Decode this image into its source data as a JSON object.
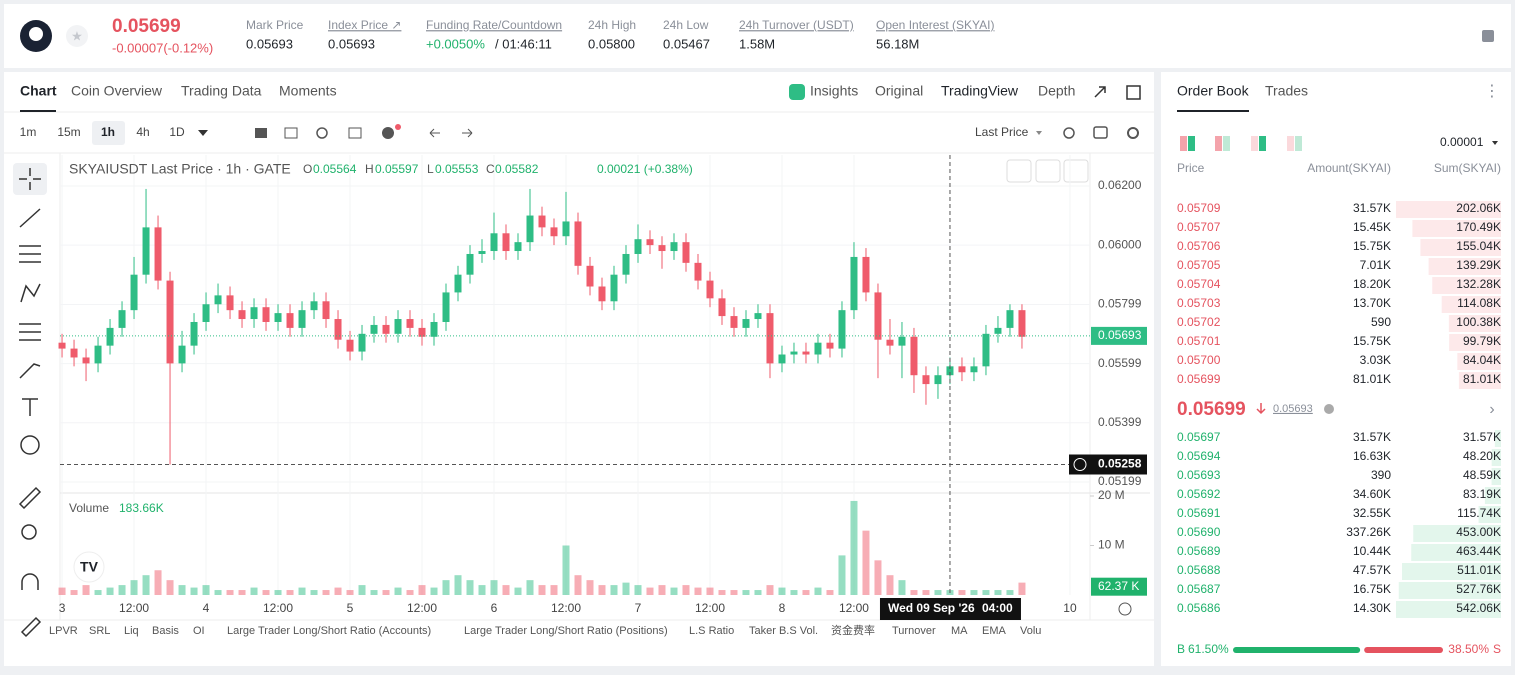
{
  "header": {
    "price": "0.05699",
    "change": "-0.00007(-0.12%)",
    "stats": [
      {
        "label": "Mark Price",
        "value": "0.05693"
      },
      {
        "label": "Index Price ↗",
        "value": "0.05693"
      },
      {
        "label": "Funding Rate/Countdown",
        "value": "+0.0050%",
        "extra": "/ 01:46:11"
      },
      {
        "label": "24h High",
        "value": "0.05800"
      },
      {
        "label": "24h Low",
        "value": "0.05467"
      },
      {
        "label": "24h Turnover (USDT)",
        "value": "1.58M"
      },
      {
        "label": "Open Interest (SKYAI)",
        "value": "56.18M"
      }
    ]
  },
  "tabs": [
    "Chart",
    "Coin Overview",
    "Trading Data",
    "Moments"
  ],
  "view_tabs": [
    "Insights",
    "Original",
    "TradingView",
    "Depth"
  ],
  "intervals": [
    "1m",
    "15m",
    "1h",
    "4h",
    "1D"
  ],
  "price_source": "Last Price",
  "chart_data": {
    "type": "candlestick",
    "legend": {
      "symbol": "SKYAIUSDT Last Price · 1h · GATE",
      "o": "O",
      "ov": "0.05564",
      "h": "H",
      "hv": "0.05597",
      "l": "L",
      "lv": "0.05553",
      "c": "C",
      "cv": "0.05582",
      "chg": "0.00021 (+0.38%)"
    },
    "up_color": "#2ebd85",
    "down_color": "#ef5b6b",
    "candles": [
      [
        0.0567,
        0.057,
        0.0562,
        0.0565
      ],
      [
        0.0565,
        0.0568,
        0.0559,
        0.0562
      ],
      [
        0.0562,
        0.0565,
        0.0554,
        0.056
      ],
      [
        0.056,
        0.0569,
        0.0557,
        0.0566
      ],
      [
        0.0566,
        0.0575,
        0.0563,
        0.0572
      ],
      [
        0.0572,
        0.0581,
        0.0569,
        0.0578
      ],
      [
        0.0578,
        0.0596,
        0.0575,
        0.059
      ],
      [
        0.059,
        0.0619,
        0.0587,
        0.0606
      ],
      [
        0.0606,
        0.061,
        0.0585,
        0.0588
      ],
      [
        0.0588,
        0.0591,
        0.05258,
        0.056
      ],
      [
        0.056,
        0.0571,
        0.0557,
        0.0566
      ],
      [
        0.0566,
        0.0577,
        0.0563,
        0.0574
      ],
      [
        0.0574,
        0.0584,
        0.0571,
        0.058
      ],
      [
        0.058,
        0.0587,
        0.0577,
        0.0583
      ],
      [
        0.0583,
        0.0586,
        0.0575,
        0.0578
      ],
      [
        0.0578,
        0.0581,
        0.0572,
        0.0575
      ],
      [
        0.0575,
        0.0582,
        0.0572,
        0.0579
      ],
      [
        0.0579,
        0.0582,
        0.0571,
        0.0574
      ],
      [
        0.0574,
        0.058,
        0.0571,
        0.0577
      ],
      [
        0.0577,
        0.058,
        0.0569,
        0.0572
      ],
      [
        0.0572,
        0.0581,
        0.0569,
        0.0578
      ],
      [
        0.0578,
        0.0584,
        0.0575,
        0.0581
      ],
      [
        0.0581,
        0.0584,
        0.0572,
        0.0575
      ],
      [
        0.0575,
        0.0578,
        0.0565,
        0.0568
      ],
      [
        0.0568,
        0.0571,
        0.0561,
        0.0564
      ],
      [
        0.0564,
        0.0573,
        0.0561,
        0.057
      ],
      [
        0.057,
        0.0576,
        0.0567,
        0.0573
      ],
      [
        0.0573,
        0.0576,
        0.0567,
        0.057
      ],
      [
        0.057,
        0.0578,
        0.0567,
        0.0575
      ],
      [
        0.0575,
        0.0578,
        0.0569,
        0.0572
      ],
      [
        0.0572,
        0.0575,
        0.0566,
        0.0569
      ],
      [
        0.0569,
        0.0577,
        0.0566,
        0.0574
      ],
      [
        0.0574,
        0.0587,
        0.0571,
        0.0584
      ],
      [
        0.0584,
        0.0593,
        0.0581,
        0.059
      ],
      [
        0.059,
        0.06,
        0.0587,
        0.0597
      ],
      [
        0.0597,
        0.0602,
        0.0594,
        0.0598
      ],
      [
        0.0598,
        0.0611,
        0.0595,
        0.0604
      ],
      [
        0.0604,
        0.0607,
        0.0595,
        0.0598
      ],
      [
        0.0598,
        0.0604,
        0.0595,
        0.0601
      ],
      [
        0.0601,
        0.0619,
        0.0598,
        0.061
      ],
      [
        0.061,
        0.0613,
        0.0603,
        0.0606
      ],
      [
        0.0606,
        0.0609,
        0.06,
        0.0603
      ],
      [
        0.0603,
        0.0618,
        0.06,
        0.0608
      ],
      [
        0.0608,
        0.0611,
        0.059,
        0.0593
      ],
      [
        0.0593,
        0.0596,
        0.0583,
        0.0586
      ],
      [
        0.0586,
        0.0589,
        0.0578,
        0.0581
      ],
      [
        0.0581,
        0.0593,
        0.0578,
        0.059
      ],
      [
        0.059,
        0.06,
        0.0587,
        0.0597
      ],
      [
        0.0597,
        0.0607,
        0.0594,
        0.0602
      ],
      [
        0.0602,
        0.0605,
        0.0597,
        0.06
      ],
      [
        0.06,
        0.0603,
        0.0592,
        0.0598
      ],
      [
        0.0598,
        0.0604,
        0.0595,
        0.0601
      ],
      [
        0.0601,
        0.0604,
        0.0591,
        0.0594
      ],
      [
        0.0594,
        0.0597,
        0.0585,
        0.0588
      ],
      [
        0.0588,
        0.0591,
        0.0579,
        0.0582
      ],
      [
        0.0582,
        0.0585,
        0.0573,
        0.0576
      ],
      [
        0.0576,
        0.0579,
        0.0569,
        0.0572
      ],
      [
        0.0572,
        0.0578,
        0.0569,
        0.0575
      ],
      [
        0.0575,
        0.058,
        0.0572,
        0.0577
      ],
      [
        0.0577,
        0.058,
        0.0555,
        0.056
      ],
      [
        0.056,
        0.0566,
        0.0557,
        0.0563
      ],
      [
        0.0563,
        0.0567,
        0.056,
        0.0564
      ],
      [
        0.0564,
        0.0567,
        0.056,
        0.0563
      ],
      [
        0.0563,
        0.057,
        0.056,
        0.0567
      ],
      [
        0.0567,
        0.057,
        0.0562,
        0.0565
      ],
      [
        0.0565,
        0.0581,
        0.0562,
        0.0578
      ],
      [
        0.0578,
        0.0601,
        0.0575,
        0.0596
      ],
      [
        0.0596,
        0.0599,
        0.0581,
        0.0584
      ],
      [
        0.0584,
        0.0587,
        0.0555,
        0.0568
      ],
      [
        0.0568,
        0.0575,
        0.0563,
        0.0566
      ],
      [
        0.0566,
        0.0574,
        0.0555,
        0.0569
      ],
      [
        0.0569,
        0.0572,
        0.055,
        0.0556
      ],
      [
        0.0556,
        0.0559,
        0.0546,
        0.0553
      ],
      [
        0.0553,
        0.0559,
        0.0548,
        0.0556
      ],
      [
        0.0556,
        0.0562,
        0.0553,
        0.0559
      ],
      [
        0.0559,
        0.0562,
        0.0554,
        0.0557
      ],
      [
        0.0557,
        0.0562,
        0.0554,
        0.0559
      ],
      [
        0.0559,
        0.0573,
        0.0556,
        0.057
      ],
      [
        0.057,
        0.0576,
        0.0567,
        0.0572
      ],
      [
        0.0572,
        0.058,
        0.0569,
        0.0578
      ],
      [
        0.0578,
        0.058,
        0.0565,
        0.0569
      ]
    ],
    "ylim": [
      0.05165,
      0.06298
    ],
    "yticks": [
      {
        "value": 0.062,
        "label": "0.06200"
      },
      {
        "value": 0.06,
        "label": "0.06000"
      },
      {
        "value": 0.05799,
        "label": "0.05799"
      },
      {
        "value": 0.05599,
        "label": "0.05599"
      },
      {
        "value": 0.05399,
        "label": "0.05399"
      },
      {
        "value": 0.05199,
        "label": "0.05199"
      }
    ],
    "last_price": {
      "value": 0.05693,
      "label": "0.05693"
    },
    "low_marker": {
      "value": 0.05258,
      "label": "0.05258"
    },
    "xlim": [
      -0.17,
      85.67
    ],
    "xticks": [
      {
        "value": 0,
        "label": "3"
      },
      {
        "value": 6,
        "label": "12:00"
      },
      {
        "value": 12,
        "label": "4"
      },
      {
        "value": 18,
        "label": "12:00"
      },
      {
        "value": 24,
        "label": "5"
      },
      {
        "value": 30,
        "label": "12:00"
      },
      {
        "value": 36,
        "label": "6"
      },
      {
        "value": 42,
        "label": "12:00"
      },
      {
        "value": 48,
        "label": "7"
      },
      {
        "value": 54,
        "label": "12:00"
      },
      {
        "value": 60,
        "label": "8"
      },
      {
        "value": 66,
        "label": "12:00"
      },
      {
        "value": 84,
        "label": "10"
      }
    ],
    "crosshair": {
      "value": 74,
      "date": "Wed 09 Sep '26",
      "time": "04:00"
    },
    "volume": {
      "title": "Volume",
      "current": "183.66K",
      "values": [
        1500000,
        1000000,
        2000000,
        1000000,
        1500000,
        2000000,
        3000000,
        4000000,
        5000000,
        3000000,
        2000000,
        1500000,
        2000000,
        1000000,
        1000000,
        1000000,
        1500000,
        1000000,
        1000000,
        1000000,
        1500000,
        1000000,
        1000000,
        1500000,
        1000000,
        2000000,
        1000000,
        1000000,
        1500000,
        1000000,
        2000000,
        1500000,
        3000000,
        4000000,
        3000000,
        2000000,
        3000000,
        2000000,
        1500000,
        3000000,
        2000000,
        2000000,
        10000000,
        4000000,
        3000000,
        2000000,
        2000000,
        2500000,
        2000000,
        1500000,
        2000000,
        1500000,
        2000000,
        1500000,
        1500000,
        1000000,
        1000000,
        1000000,
        1000000,
        2000000,
        1500000,
        1000000,
        1000000,
        1500000,
        1000000,
        8000000,
        19000000,
        13000000,
        7000000,
        4000000,
        3000000,
        1000000,
        1000000,
        1000000,
        1000000,
        1000000,
        1000000,
        1000000,
        1000000,
        1000000,
        2500000
      ],
      "ylim": [
        0,
        20200000
      ],
      "yticks": [
        {
          "value": 10000000,
          "label": "10 M"
        },
        {
          "value": 20000000,
          "label": "20 M"
        }
      ],
      "last": {
        "value": 62370,
        "label": "62.37 K"
      }
    }
  },
  "bottom_tabs": [
    "LPVR",
    "SRL",
    "Liq",
    "Basis",
    "OI",
    "Large Trader Long/Short Ratio (Accounts)",
    "Large Trader Long/Short Ratio (Positions)",
    "L.S Ratio",
    "Taker B.S Vol.",
    "资金费率",
    "Turnover",
    "MA",
    "EMA",
    "Volu"
  ],
  "order_book": {
    "tabs": [
      "Order Book",
      "Trades"
    ],
    "precision": "0.00001",
    "columns": [
      "Price",
      "Amount(SKYAI)",
      "Sum(SKYAI)"
    ],
    "asks": [
      [
        "0.05709",
        "31.57K",
        "202.06K"
      ],
      [
        "0.05707",
        "15.45K",
        "170.49K"
      ],
      [
        "0.05706",
        "15.75K",
        "155.04K"
      ],
      [
        "0.05705",
        "7.01K",
        "139.29K"
      ],
      [
        "0.05704",
        "18.20K",
        "132.28K"
      ],
      [
        "0.05703",
        "13.70K",
        "114.08K"
      ],
      [
        "0.05702",
        "590",
        "100.38K"
      ],
      [
        "0.05701",
        "15.75K",
        "99.79K"
      ],
      [
        "0.05700",
        "3.03K",
        "84.04K"
      ],
      [
        "0.05699",
        "81.01K",
        "81.01K"
      ]
    ],
    "last": "0.05699",
    "mark": "0.05693",
    "bids": [
      [
        "0.05697",
        "31.57K",
        "31.57K"
      ],
      [
        "0.05694",
        "16.63K",
        "48.20K"
      ],
      [
        "0.05693",
        "390",
        "48.59K"
      ],
      [
        "0.05692",
        "34.60K",
        "83.19K"
      ],
      [
        "0.05691",
        "32.55K",
        "115.74K"
      ],
      [
        "0.05690",
        "337.26K",
        "453.00K"
      ],
      [
        "0.05689",
        "10.44K",
        "463.44K"
      ],
      [
        "0.05688",
        "47.57K",
        "511.01K"
      ],
      [
        "0.05687",
        "16.75K",
        "527.76K"
      ],
      [
        "0.05686",
        "14.30K",
        "542.06K"
      ]
    ],
    "buy": "B",
    "buy_ratio": {
      "value": 61.5,
      "label": "61.50%"
    },
    "sell_ratio": {
      "value": 38.5,
      "label": "38.50%"
    },
    "sell": "S"
  }
}
